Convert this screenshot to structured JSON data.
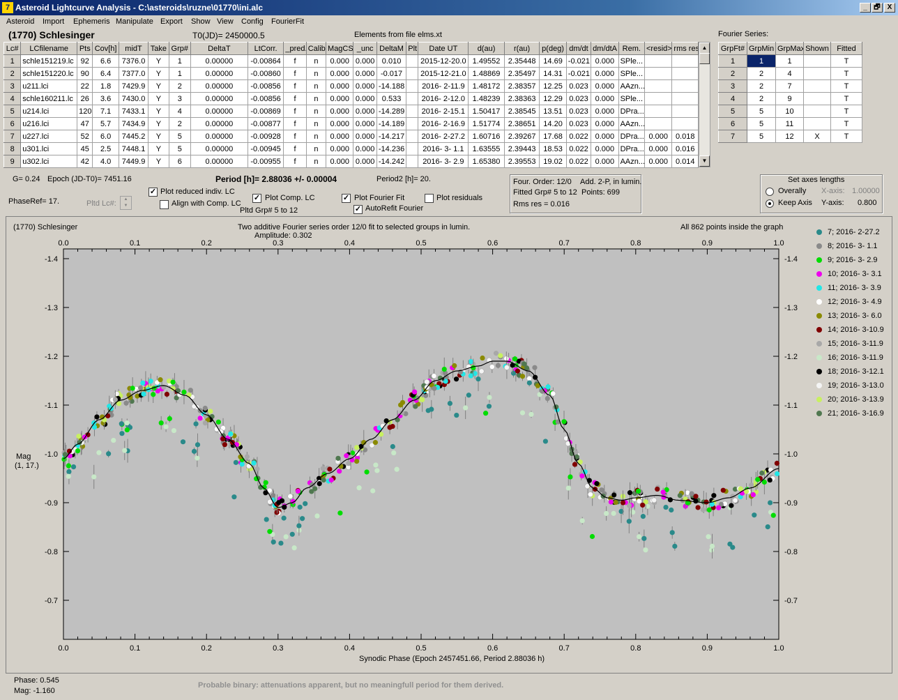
{
  "window": {
    "title": "Asteroid Lightcurve Analysis - C:\\asteroids\\ruzne\\01770\\ini.alc",
    "icon": "app-icon",
    "buttons": [
      "_",
      "🗗",
      "X"
    ]
  },
  "menu": [
    "Asteroid",
    "Import",
    "Ephemeris",
    "Manipulate",
    "Export",
    "Show",
    "View",
    "Config",
    "FourierFit"
  ],
  "header": {
    "asteroid": "(1770) Schlesinger",
    "t0": "T0(JD)= 2450000.5",
    "elements": "Elements from file elms.xt",
    "fourier_series_label": "Fourier Series:"
  },
  "lc_table": {
    "columns": [
      "Lc#",
      "LCfilename",
      "Pts",
      "Cov[h]",
      "midT",
      "Take",
      "Grp#",
      "DeltaT",
      "LtCorr.",
      "_pred.",
      "Calib.",
      "MagCS",
      "_unc",
      "DeltaM",
      "Plt",
      "Date UT",
      "d(au)",
      "r(au)",
      "p(deg)",
      "dm/dt",
      "dm/dtA",
      "Rem.",
      "<resid>",
      "rms res"
    ],
    "rows": [
      [
        "1",
        "schle151219.lc",
        "92",
        "6.6",
        "7376.0",
        "Y",
        "1",
        "0.00000",
        "-0.00864",
        "f",
        "n",
        "0.000",
        "0.000",
        "0.010",
        "",
        "2015-12-20.0",
        "1.49552",
        "2.35448",
        "14.69",
        "-0.021",
        "0.000",
        "SPle...",
        "",
        ""
      ],
      [
        "2",
        "schle151220.lc",
        "90",
        "6.4",
        "7377.0",
        "Y",
        "1",
        "0.00000",
        "-0.00860",
        "f",
        "n",
        "0.000",
        "0.000",
        "-0.017",
        "",
        "2015-12-21.0",
        "1.48869",
        "2.35497",
        "14.31",
        "-0.021",
        "0.000",
        "SPle...",
        "",
        ""
      ],
      [
        "3",
        "u211.lci",
        "22",
        "1.8",
        "7429.9",
        "Y",
        "2",
        "0.00000",
        "-0.00856",
        "f",
        "n",
        "0.000",
        "0.000",
        "-14.188",
        "",
        "2016- 2-11.9",
        "1.48172",
        "2.38357",
        "12.25",
        "0.023",
        "0.000",
        "AAzn...",
        "",
        ""
      ],
      [
        "4",
        "schle160211.lc",
        "26",
        "3.6",
        "7430.0",
        "Y",
        "3",
        "0.00000",
        "-0.00856",
        "f",
        "n",
        "0.000",
        "0.000",
        "0.533",
        "",
        "2016- 2-12.0",
        "1.48239",
        "2.38363",
        "12.29",
        "0.023",
        "0.000",
        "SPle...",
        "",
        ""
      ],
      [
        "5",
        "u214.lci",
        "120",
        "7.1",
        "7433.1",
        "Y",
        "4",
        "0.00000",
        "-0.00869",
        "f",
        "n",
        "0.000",
        "0.000",
        "-14.289",
        "",
        "2016- 2-15.1",
        "1.50417",
        "2.38545",
        "13.51",
        "0.023",
        "0.000",
        "DPra...",
        "",
        ""
      ],
      [
        "6",
        "u216.lci",
        "47",
        "5.7",
        "7434.9",
        "Y",
        "2",
        "0.00000",
        "-0.00877",
        "f",
        "n",
        "0.000",
        "0.000",
        "-14.189",
        "",
        "2016- 2-16.9",
        "1.51774",
        "2.38651",
        "14.20",
        "0.023",
        "0.000",
        "AAzn...",
        "",
        ""
      ],
      [
        "7",
        "u227.lci",
        "52",
        "6.0",
        "7445.2",
        "Y",
        "5",
        "0.00000",
        "-0.00928",
        "f",
        "n",
        "0.000",
        "0.000",
        "-14.217",
        "",
        "2016- 2-27.2",
        "1.60716",
        "2.39267",
        "17.68",
        "0.022",
        "0.000",
        "DPra...",
        "0.000",
        "0.018"
      ],
      [
        "8",
        "u301.lci",
        "45",
        "2.5",
        "7448.1",
        "Y",
        "5",
        "0.00000",
        "-0.00945",
        "f",
        "n",
        "0.000",
        "0.000",
        "-14.236",
        "",
        "2016- 3- 1.1",
        "1.63555",
        "2.39443",
        "18.53",
        "0.022",
        "0.000",
        "DPra...",
        "0.000",
        "0.016"
      ],
      [
        "9",
        "u302.lci",
        "42",
        "4.0",
        "7449.9",
        "Y",
        "6",
        "0.00000",
        "-0.00955",
        "f",
        "n",
        "0.000",
        "0.000",
        "-14.242",
        "",
        "2016- 3- 2.9",
        "1.65380",
        "2.39553",
        "19.02",
        "0.022",
        "0.000",
        "AAzn...",
        "0.000",
        "0.014"
      ]
    ]
  },
  "fourier_table": {
    "columns": [
      "GrpFt#",
      "GrpMin",
      "GrpMax",
      "Shown",
      "Fitted"
    ],
    "rows": [
      [
        "1",
        "1",
        "1",
        "",
        "T"
      ],
      [
        "2",
        "2",
        "4",
        "",
        "T"
      ],
      [
        "3",
        "2",
        "7",
        "",
        "T"
      ],
      [
        "4",
        "2",
        "9",
        "",
        "T"
      ],
      [
        "5",
        "5",
        "10",
        "",
        "T"
      ],
      [
        "6",
        "5",
        "11",
        "",
        "T"
      ],
      [
        "7",
        "5",
        "12",
        "X",
        "T"
      ]
    ]
  },
  "info": {
    "g": "G= 0.24",
    "epoch": "Epoch (JD-T0)= 7451.16",
    "period": "Period [h]= 2.88036 +/- 0.00004",
    "period2": "Period2 [h]= 20.",
    "phaseref": "PhaseRef= 17.",
    "pltd_lc": "Pltd Lc#:"
  },
  "checks": {
    "plot_reduced": {
      "label": "Plot reduced indiv. LC",
      "checked": true
    },
    "align_comp": {
      "label": "Align with Comp. LC",
      "checked": false
    },
    "plot_comp": {
      "label": "Plot Comp. LC",
      "checked": true
    },
    "pltd_grp": "Pltd Grp#  5  to  12",
    "plot_fourier": {
      "label": "Plot Fourier Fit",
      "checked": true
    },
    "autorefit": {
      "label": "AutoRefit Fourier",
      "checked": true
    },
    "plot_resid": {
      "label": "Plot residuals",
      "checked": false
    }
  },
  "fourier_info": {
    "order": "Four. Order: 12/0",
    "add": "Add. 2-P, in lumin.",
    "fitted": "Fitted Grp# 5 to 12",
    "points": "Points: 699",
    "rms": "Rms res      = 0.016"
  },
  "axes_box": {
    "title": "Set axes lengths",
    "overally": "Overally",
    "keep": "Keep Axis",
    "xaxis_label": "X-axis:",
    "xaxis_val": "1.00000",
    "yaxis_label": "Y-axis:",
    "yaxis_val": "0.800",
    "selected": "Keep Axis"
  },
  "chart_data": {
    "type": "scatter",
    "title_left": "(1770) Schlesinger",
    "title": "Two additive Fourier series order 12/0 fit to selected groups in lumin.",
    "subtitle": "Amplitude: 0.302",
    "title_right": "All 862 points inside the graph",
    "xlabel": "Synodic Phase (Epoch 2457451.66, Period 2.88036 h)",
    "ylabel": "Mag",
    "ylabel2": "(1, 17.)",
    "xlim": [
      0,
      1
    ],
    "ylim": [
      -1.42,
      -0.62
    ],
    "y_inverted": true,
    "xticks": [
      "0.0",
      "0.1",
      "0.2",
      "0.3",
      "0.4",
      "0.5",
      "0.6",
      "0.7",
      "0.8",
      "0.9",
      "1.0"
    ],
    "yticks": [
      "-1.4",
      "-1.3",
      "-1.2",
      "-1.1",
      "-1.0",
      "-0.9",
      "-0.8",
      "-0.7"
    ],
    "fit_curve": {
      "x": [
        0,
        0.02,
        0.05,
        0.08,
        0.11,
        0.14,
        0.17,
        0.2,
        0.23,
        0.26,
        0.28,
        0.3,
        0.32,
        0.34,
        0.37,
        0.4,
        0.43,
        0.46,
        0.49,
        0.52,
        0.55,
        0.58,
        0.6,
        0.62,
        0.65,
        0.68,
        0.7,
        0.72,
        0.74,
        0.76,
        0.78,
        0.8,
        0.83,
        0.86,
        0.9,
        0.93,
        0.96,
        1.0
      ],
      "y": [
        -0.99,
        -1.02,
        -1.07,
        -1.11,
        -1.13,
        -1.14,
        -1.12,
        -1.08,
        -1.03,
        -0.98,
        -0.93,
        -0.89,
        -0.9,
        -0.93,
        -0.96,
        -0.99,
        -1.03,
        -1.07,
        -1.11,
        -1.15,
        -1.17,
        -1.18,
        -1.19,
        -1.19,
        -1.17,
        -1.12,
        -1.05,
        -0.98,
        -0.93,
        -0.91,
        -0.905,
        -0.91,
        -0.915,
        -0.905,
        -0.9,
        -0.91,
        -0.93,
        -0.97
      ]
    },
    "series": [
      {
        "name": "7; 2016- 2-27.2",
        "color": "#2a8a8a"
      },
      {
        "name": "8; 2016- 3- 1.1",
        "color": "#8a8a8a"
      },
      {
        "name": "9; 2016- 3- 2.9",
        "color": "#00dd00"
      },
      {
        "name": "10; 2016- 3- 3.1",
        "color": "#ee00ee"
      },
      {
        "name": "11; 2016- 3- 3.9",
        "color": "#22e6e6"
      },
      {
        "name": "12; 2016- 3- 4.9",
        "color": "#ffffff"
      },
      {
        "name": "13; 2016- 3- 6.0",
        "color": "#8a8a00"
      },
      {
        "name": "14; 2016- 3-10.9",
        "color": "#800000"
      },
      {
        "name": "15; 2016- 3-11.9",
        "color": "#a8a8a8"
      },
      {
        "name": "16; 2016- 3-11.9",
        "color": "#c8e8c8"
      },
      {
        "name": "18; 2016- 3-12.1",
        "color": "#000000"
      },
      {
        "name": "19; 2016- 3-13.0",
        "color": "#f4f4f4"
      },
      {
        "name": "20; 2016- 3-13.9",
        "color": "#c8f060"
      },
      {
        "name": "21; 2016- 3-16.9",
        "color": "#507850"
      }
    ]
  },
  "status": {
    "phase": "Phase:  0.545",
    "mag": "Mag:    -1.160",
    "note": "Probable binary: attenuations apparent, but no meaningfull period for them derived."
  }
}
